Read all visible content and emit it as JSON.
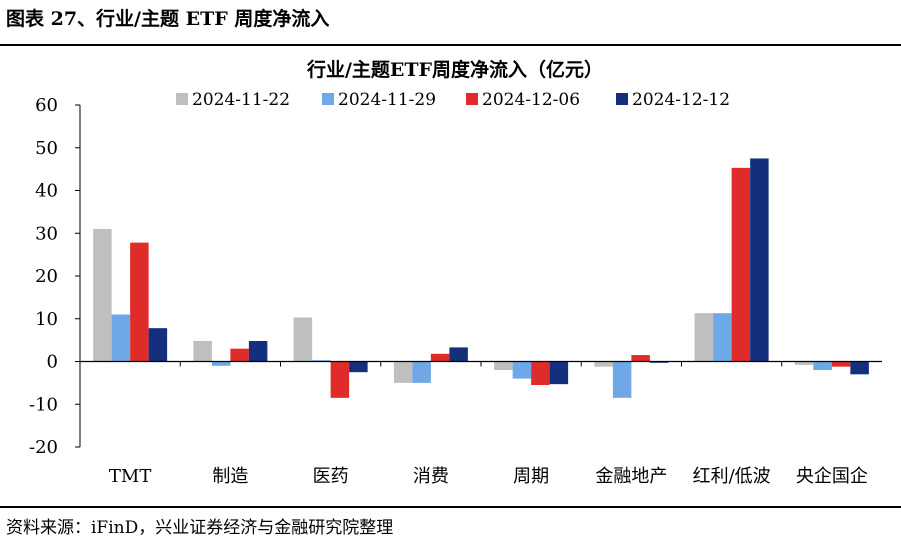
{
  "figure": {
    "caption": "图表 27、行业/主题 ETF 周度净流入",
    "source": "资料来源：iFinD，兴业证券经济与金融研究院整理"
  },
  "chart_data": {
    "type": "bar",
    "title": "行业/主题ETF周度净流入（亿元）",
    "xlabel": "",
    "ylabel": "",
    "ylim": [
      -20,
      60
    ],
    "yticks": [
      -20,
      -10,
      0,
      10,
      20,
      30,
      40,
      50,
      60
    ],
    "grid": false,
    "legend_position": "top",
    "categories": [
      "TMT",
      "制造",
      "医药",
      "消费",
      "周期",
      "金融地产",
      "红利/低波",
      "央企国企"
    ],
    "series": [
      {
        "name": "2024-11-22",
        "color": "#bfbfbf",
        "values": [
          31.0,
          4.8,
          10.3,
          -5.0,
          -2.0,
          -1.2,
          11.3,
          -0.8
        ]
      },
      {
        "name": "2024-11-29",
        "color": "#6fa8e6",
        "values": [
          11.0,
          -1.0,
          0.3,
          -5.0,
          -4.0,
          -8.5,
          11.3,
          -2.0
        ]
      },
      {
        "name": "2024-12-06",
        "color": "#e02b2b",
        "values": [
          27.8,
          3.0,
          -8.5,
          1.8,
          -5.5,
          1.5,
          45.3,
          -1.2
        ]
      },
      {
        "name": "2024-12-12",
        "color": "#14307d",
        "values": [
          7.8,
          4.8,
          -2.5,
          3.3,
          -5.3,
          -0.3,
          47.5,
          -3.0
        ]
      }
    ]
  }
}
